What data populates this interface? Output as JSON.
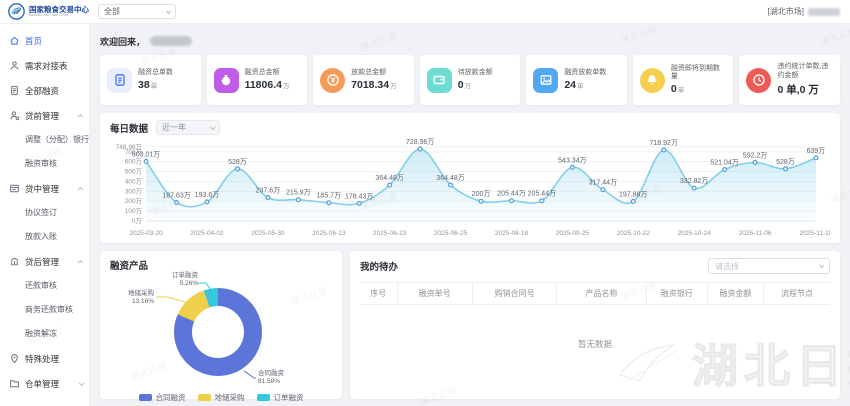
{
  "header": {
    "logo_title": "国家粮食交易中心",
    "logo_subtitle": "National Grain Trade Center",
    "market_select_value": "全部",
    "market_tag": "[湖北市场]"
  },
  "sidebar": {
    "items": [
      {
        "label": "首页",
        "icon": "home-icon",
        "active": true
      },
      {
        "label": "需求对接表",
        "icon": "user-icon"
      },
      {
        "label": "全部融资",
        "icon": "document-icon"
      },
      {
        "label": "贷前管理",
        "icon": "user-gear-icon",
        "expanded": true,
        "children": [
          "调整（分配）银行",
          "融资审核"
        ]
      },
      {
        "label": "贷中管理",
        "icon": "card-list-icon",
        "expanded": true,
        "children": [
          "协议签订",
          "放款入账"
        ]
      },
      {
        "label": "贷后管理",
        "icon": "bank-icon",
        "expanded": true,
        "children": [
          "还款审核",
          "商务还款审核",
          "融资解冻"
        ]
      },
      {
        "label": "特殊处理",
        "icon": "pin-icon"
      },
      {
        "label": "仓单管理",
        "icon": "folder-icon",
        "expanded": false,
        "children": []
      }
    ]
  },
  "main": {
    "welcome_prefix": "欢迎回来，",
    "stats": [
      {
        "title": "融资总单数",
        "value": "38",
        "unit": "单",
        "icon": "doc-icon",
        "shape": "square",
        "bg": "#e9effe",
        "fg": "#4e7cf6"
      },
      {
        "title": "融资总金额",
        "value": "11806.4",
        "unit": "万",
        "icon": "moneybag-icon",
        "shape": "square",
        "bg": "#c05ce8",
        "fg": "#ffffff"
      },
      {
        "title": "放款总金额",
        "value": "7018.34",
        "unit": "万",
        "icon": "coin-icon",
        "shape": "circle",
        "bg": "#f59a57",
        "fg": "#ffffff"
      },
      {
        "title": "待放款金额",
        "value": "0",
        "unit": "万",
        "icon": "wallet-icon",
        "shape": "square",
        "bg": "#6fdcd4",
        "fg": "#ffffff"
      },
      {
        "title": "融资放款单数",
        "value": "24",
        "unit": "单",
        "icon": "image-icon",
        "shape": "square",
        "bg": "#53a8f5",
        "fg": "#ffffff"
      },
      {
        "title": "融资即将到期数量",
        "value": "0",
        "unit": "单",
        "icon": "bell-icon",
        "shape": "circle",
        "bg": "#f6cf4f",
        "fg": "#ffffff"
      },
      {
        "title": "违约统计单数,违约金额",
        "value": "0 单,0 万",
        "unit": "",
        "icon": "clock-icon",
        "shape": "circle",
        "bg": "#ee5a55",
        "fg": "#ffffff"
      }
    ],
    "daily": {
      "title": "每日数据",
      "range_select_value": "近一年"
    },
    "products": {
      "title": "融资产品"
    },
    "todo": {
      "title": "我的待办",
      "select_placeholder": "请选择",
      "columns": [
        "序号",
        "融资单号",
        "购销合同号",
        "产品名称",
        "融资银行",
        "融资金额",
        "流程节点"
      ],
      "empty_text": "暂无数据"
    }
  },
  "watermark_text": "湖北日报",
  "chart_data": [
    {
      "id": "daily-line",
      "type": "line",
      "title": "每日数据",
      "x": [
        "2025-03-20",
        "2025-04-02",
        "2025-05-30",
        "2025-06-13",
        "2025-06-23",
        "2025-06-25",
        "2025-08-18",
        "2025-09-25",
        "2025-10-22",
        "2025-10-24",
        "2025-11-06",
        "2025-11-18"
      ],
      "x_label_every_other_point": true,
      "values": [
        603.01,
        187.63,
        193.6,
        528,
        237.6,
        215.9,
        185.7,
        178.43,
        364.48,
        728.96,
        364.48,
        200,
        205.44,
        205.44,
        543.34,
        317.44,
        197.88,
        718.92,
        332.82,
        521.04,
        592.2,
        528,
        639
      ],
      "point_labels": [
        "603.01万",
        "187.63万",
        "193.6万",
        "528万",
        "237.6万",
        "215.9万",
        "185.7万",
        "178.43万",
        "364.48万",
        "728.96万",
        "364.48万",
        "200万",
        "205.44万",
        "205.44万",
        "543.34万",
        "317.44万",
        "197.88万",
        "718.92万",
        "332.82万",
        "521.04万",
        "592.2万",
        "528万",
        "639万"
      ],
      "ylim": [
        0,
        748.96
      ],
      "yticks": [
        0,
        100,
        200,
        300,
        400,
        500,
        600,
        700,
        748.96
      ],
      "ytick_labels": [
        "0万",
        "100万",
        "200万",
        "300万",
        "400万",
        "500万",
        "600万",
        "700万",
        "748.96万"
      ],
      "ylabel": "",
      "xlabel": "",
      "grid": true,
      "line_color": "#83cfe9",
      "area_color_top": "rgba(131,207,233,0.40)",
      "area_color_bottom": "rgba(131,207,233,0.03)",
      "point_color": "#4f9ed9"
    },
    {
      "id": "products-pie",
      "type": "pie",
      "title": "融资产品",
      "slices": [
        {
          "name": "合同融资",
          "pct": 81.58,
          "label": "合同融资 81.58%",
          "color": "#5b76d8"
        },
        {
          "name": "地储采购",
          "pct": 13.16,
          "label": "地储采购 13.16%",
          "color": "#efce49"
        },
        {
          "name": "订单融资",
          "pct": 5.26,
          "label": "订单融资 5.26%",
          "color": "#36c6dd"
        }
      ],
      "legend": [
        "合同融资",
        "地储采购",
        "订单融资"
      ],
      "legend_position": "bottom"
    }
  ]
}
